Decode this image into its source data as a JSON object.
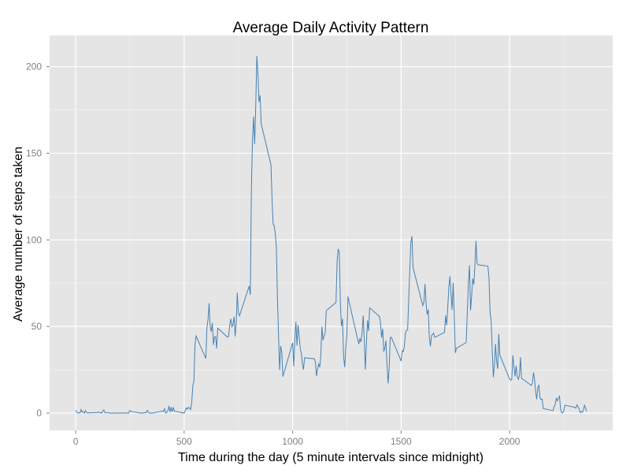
{
  "chart_data": {
    "type": "line",
    "title": "Average Daily Activity Pattern",
    "xlabel": "Time during the day (5 minute intervals since midnight)",
    "ylabel": "Average number of steps taken",
    "xlim": [
      -120,
      2475
    ],
    "ylim": [
      -10,
      218
    ],
    "x_ticks": [
      0,
      500,
      1000,
      1500,
      2000
    ],
    "y_ticks": [
      0,
      50,
      100,
      150,
      200
    ],
    "grid": true,
    "panel_background": "#e5e5e5",
    "grid_color": "#ffffff",
    "line_color": "#4682b4",
    "series": [
      {
        "x": [
          0,
          5,
          10,
          15,
          20,
          25,
          30,
          35,
          40,
          45,
          50,
          55,
          100,
          105,
          110,
          115,
          120,
          125,
          130,
          135,
          140,
          145,
          150,
          155,
          200,
          205,
          210,
          215,
          220,
          225,
          230,
          235,
          240,
          245,
          250,
          255,
          300,
          305,
          310,
          315,
          320,
          325,
          330,
          335,
          340,
          345,
          350,
          355,
          400,
          405,
          410,
          415,
          420,
          425,
          430,
          435,
          440,
          445,
          450,
          455,
          500,
          505,
          510,
          515,
          520,
          525,
          530,
          535,
          540,
          545,
          550,
          555,
          600,
          605,
          610,
          615,
          620,
          625,
          630,
          635,
          640,
          645,
          650,
          655,
          700,
          705,
          710,
          715,
          720,
          725,
          730,
          735,
          740,
          745,
          750,
          755,
          800,
          805,
          810,
          815,
          820,
          825,
          830,
          835,
          840,
          845,
          850,
          855,
          900,
          905,
          910,
          915,
          920,
          925,
          930,
          935,
          940,
          945,
          950,
          955,
          1000,
          1005,
          1010,
          1015,
          1020,
          1025,
          1030,
          1035,
          1040,
          1045,
          1050,
          1055,
          1100,
          1105,
          1110,
          1115,
          1120,
          1125,
          1130,
          1135,
          1140,
          1145,
          1150,
          1155,
          1200,
          1205,
          1210,
          1215,
          1220,
          1225,
          1230,
          1235,
          1240,
          1245,
          1250,
          1255,
          1300,
          1305,
          1310,
          1315,
          1320,
          1325,
          1330,
          1335,
          1340,
          1345,
          1350,
          1355,
          1400,
          1405,
          1410,
          1415,
          1420,
          1425,
          1430,
          1435,
          1440,
          1445,
          1450,
          1455,
          1500,
          1505,
          1510,
          1515,
          1520,
          1525,
          1530,
          1535,
          1540,
          1545,
          1550,
          1555,
          1600,
          1605,
          1610,
          1615,
          1620,
          1625,
          1630,
          1635,
          1640,
          1645,
          1650,
          1655,
          1700,
          1705,
          1710,
          1715,
          1720,
          1725,
          1730,
          1735,
          1740,
          1745,
          1750,
          1755,
          1800,
          1805,
          1810,
          1815,
          1820,
          1825,
          1830,
          1835,
          1840,
          1845,
          1850,
          1855,
          1900,
          1905,
          1910,
          1915,
          1920,
          1925,
          1930,
          1935,
          1940,
          1945,
          1950,
          1955,
          2000,
          2005,
          2010,
          2015,
          2020,
          2025,
          2030,
          2035,
          2040,
          2045,
          2050,
          2055,
          2100,
          2105,
          2110,
          2115,
          2120,
          2125,
          2130,
          2135,
          2140,
          2145,
          2150,
          2155,
          2200,
          2205,
          2210,
          2215,
          2220,
          2225,
          2230,
          2235,
          2240,
          2245,
          2250,
          2255,
          2300,
          2305,
          2310,
          2315,
          2320,
          2325,
          2330,
          2335,
          2340,
          2345,
          2350,
          2355
        ],
        "values": [
          1.72,
          0.34,
          0.13,
          0.15,
          0.08,
          2.09,
          0.53,
          0.87,
          0,
          1.47,
          0.3,
          0.13,
          0.32,
          0.68,
          0.15,
          0.34,
          0,
          1.11,
          1.83,
          0.17,
          0.17,
          0.38,
          0.26,
          0,
          0,
          0,
          0.11,
          0,
          0,
          0,
          0,
          0.23,
          0,
          0,
          1.55,
          0.94,
          0,
          0,
          0,
          0.21,
          0.23,
          0.2,
          1.62,
          0.72,
          0,
          0.08,
          0,
          0,
          1.19,
          0.94,
          2.57,
          0,
          0.34,
          1.37,
          4.11,
          0.66,
          3.49,
          0.83,
          3.11,
          1.11,
          0,
          1.57,
          3,
          2.25,
          3.32,
          2.96,
          2.09,
          6.06,
          16.02,
          18.34,
          39.45,
          44.49,
          31.49,
          49.26,
          53.77,
          63.45,
          49.96,
          47.08,
          52.15,
          39.34,
          44.02,
          44.17,
          37.36,
          49.04,
          43.81,
          44.38,
          50.51,
          54.51,
          49.92,
          50.98,
          55.68,
          44.32,
          52.26,
          69.55,
          57.85,
          56.15,
          73.38,
          68.21,
          129.43,
          157.53,
          171.15,
          155.4,
          177.3,
          206.17,
          195.92,
          179.57,
          183.4,
          167.02,
          143.45,
          124.04,
          109.11,
          108.11,
          103.72,
          95.97,
          66.21,
          45.23,
          24.8,
          38.75,
          34.98,
          21.06,
          40.57,
          26.98,
          42.42,
          52.66,
          38.93,
          50.79,
          44.28,
          37.42,
          34.7,
          28.34,
          25.09,
          31.94,
          31.36,
          29.68,
          21.32,
          25.55,
          28.38,
          26.47,
          33.44,
          49.98,
          42.04,
          44.6,
          46.04,
          59.19,
          63.87,
          87.7,
          94.85,
          92.77,
          63.4,
          50.17,
          54.47,
          32.42,
          26.53,
          37.74,
          45.06,
          67.28,
          42.34,
          39.89,
          43.26,
          40.98,
          46.25,
          56.43,
          42.75,
          25.13,
          39.97,
          53.55,
          47.32,
          60.81,
          55.75,
          51.96,
          43.58,
          48.7,
          35.47,
          37.55,
          41.85,
          27.51,
          17.11,
          26.08,
          43.62,
          43.77,
          30.02,
          36.08,
          35.49,
          38.85,
          45.96,
          47.75,
          48.13,
          65.32,
          82.91,
          98.66,
          102.11,
          83.96,
          62.13,
          64.13,
          74.55,
          63.17,
          56.91,
          59.77,
          43.87,
          38.57,
          44.66,
          45.45,
          46.21,
          43.68,
          46.62,
          56.3,
          50.72,
          61.23,
          72.72,
          78.94,
          68.94,
          59.66,
          75.09,
          56.51,
          34.77,
          37.45,
          40.68,
          58.02,
          74.7,
          85.32,
          59.26,
          67.77,
          77.7,
          74.25,
          85.34,
          99.45,
          86.58,
          85.6,
          84.87,
          77.83,
          58.04,
          53.36,
          36.32,
          20.72,
          27.4,
          40.02,
          30.21,
          25.55,
          45.66,
          33.53,
          19.62,
          19.02,
          19.34,
          33.34,
          26.81,
          21.17,
          27.3,
          21.34,
          19.55,
          21.32,
          32.3,
          20.15,
          15.94,
          17.23,
          23.45,
          19.25,
          12.45,
          8.02,
          14.66,
          16.3,
          8.68,
          7.79,
          8.13,
          2.62,
          1.45,
          3.68,
          4.81,
          8.51,
          7.08,
          8.7,
          9.75,
          2.2,
          0.32,
          0.11,
          1.6,
          4.6,
          3.3,
          2.85,
          4.7,
          3.68,
          2.57,
          0.34,
          0.98,
          0.33,
          1.75,
          4.53,
          2.83,
          1.08
        ]
      }
    ]
  }
}
